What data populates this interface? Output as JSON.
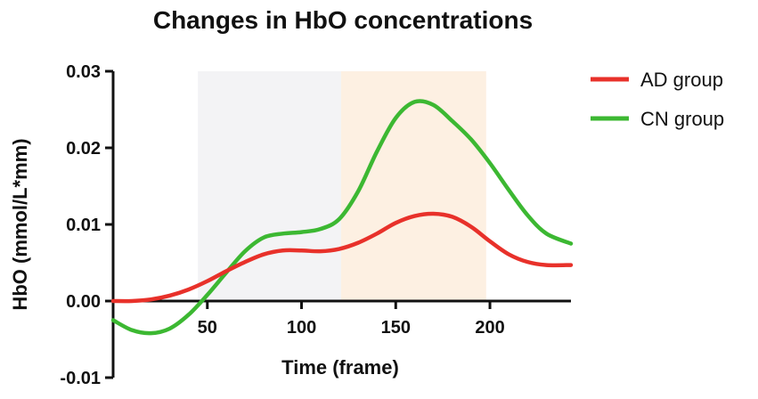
{
  "chart_data": {
    "type": "line",
    "title": "Changes in HbO concentrations",
    "xlabel": "Time (frame)",
    "ylabel": "HbO (mmol/L*mm)",
    "xlim": [
      0,
      243
    ],
    "ylim": [
      -0.01,
      0.03
    ],
    "xticks": [
      50,
      100,
      150,
      200
    ],
    "yticks": [
      -0.01,
      0.0,
      0.01,
      0.02,
      0.03
    ],
    "ytick_labels": [
      "-0.01",
      "0.00",
      "0.01",
      "0.02",
      "0.03"
    ],
    "shaded_regions": [
      {
        "x_start": 45,
        "x_end": 121,
        "color": "#f3f3f5"
      },
      {
        "x_start": 121,
        "x_end": 198,
        "color": "#fdf0e2"
      }
    ],
    "legend_position": "top-right",
    "series": [
      {
        "name": "AD group",
        "color": "#e8312a",
        "x": [
          0,
          10,
          20,
          30,
          40,
          50,
          60,
          70,
          80,
          90,
          100,
          110,
          120,
          130,
          140,
          150,
          160,
          170,
          180,
          190,
          200,
          210,
          220,
          230,
          243
        ],
        "y": [
          0.0,
          0.0,
          0.0002,
          0.0007,
          0.0015,
          0.0026,
          0.0039,
          0.0051,
          0.0061,
          0.0066,
          0.0066,
          0.0065,
          0.0068,
          0.0076,
          0.0088,
          0.0102,
          0.0111,
          0.0114,
          0.011,
          0.0097,
          0.0078,
          0.0061,
          0.0051,
          0.0047,
          0.0047
        ]
      },
      {
        "name": "CN group",
        "color": "#3cb832",
        "x": [
          0,
          10,
          20,
          30,
          40,
          50,
          60,
          70,
          80,
          90,
          100,
          110,
          120,
          130,
          140,
          150,
          160,
          170,
          180,
          190,
          200,
          210,
          220,
          230,
          243
        ],
        "y": [
          -0.0025,
          -0.0038,
          -0.0042,
          -0.0036,
          -0.0018,
          0.0008,
          0.0037,
          0.0065,
          0.0083,
          0.0088,
          0.009,
          0.0094,
          0.0107,
          0.0143,
          0.0195,
          0.0239,
          0.026,
          0.0256,
          0.0235,
          0.0211,
          0.018,
          0.0145,
          0.0112,
          0.0088,
          0.0075
        ]
      }
    ]
  }
}
